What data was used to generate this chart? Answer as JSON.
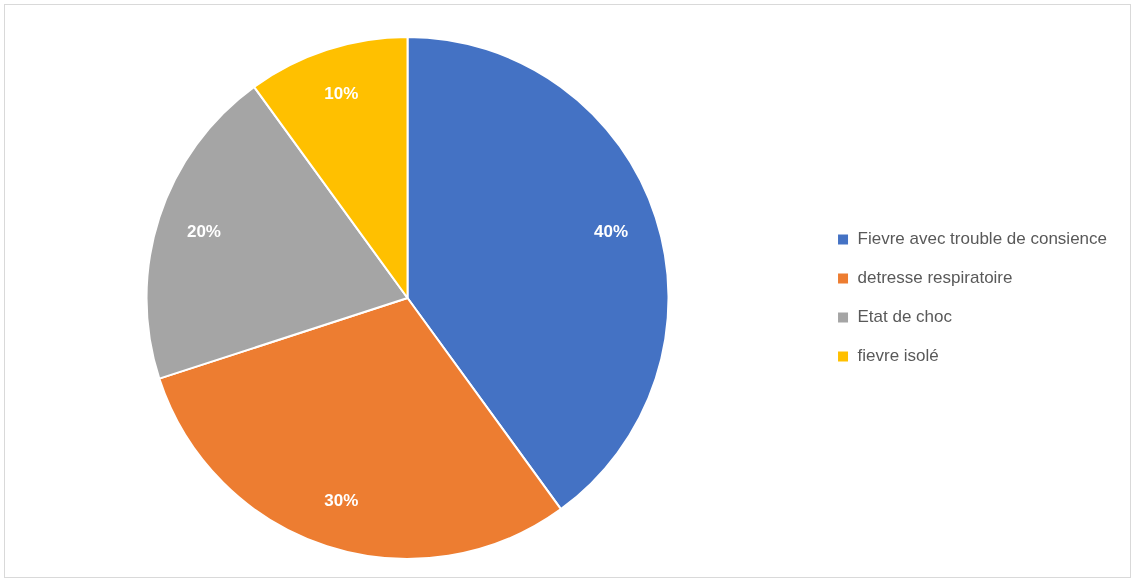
{
  "chart_data": {
    "type": "pie",
    "categories": [
      "Fievre avec trouble de consience",
      "detresse respiratoire",
      "Etat de choc",
      "fievre isolé"
    ],
    "values": [
      40,
      30,
      20,
      10
    ],
    "colors": [
      "#4472c4",
      "#ed7d31",
      "#a5a5a5",
      "#ffc000"
    ],
    "value_labels": [
      "40%",
      "30%",
      "20%",
      "10%"
    ],
    "legend": "right"
  }
}
